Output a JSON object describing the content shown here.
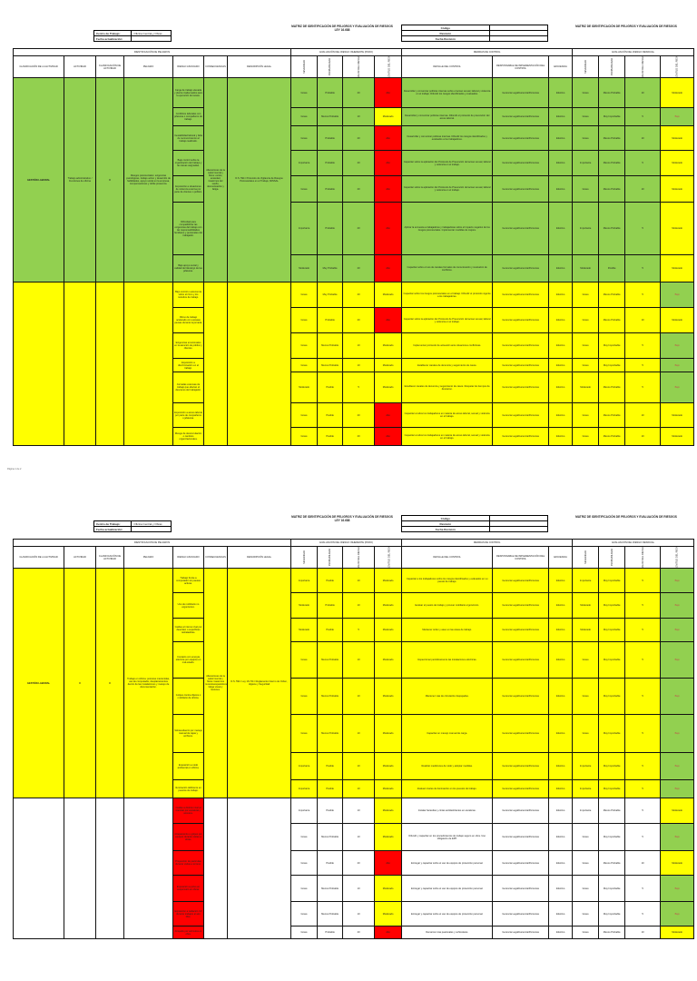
{
  "header": {
    "title": "MATRIZ DE IDENTIFICACIÓN DE PELIGROS Y EVALUACIÓN DE RIESGOS",
    "subtitle": "LEY 16.688",
    "right_title": "MATRIZ DE IDENTIFICACIÓN DE PELIGROS Y EVALUACIÓN DE RIESGOS",
    "work_center_label": "Centro de Trabajo:",
    "work_center_value": "Oficina Central y Obras",
    "update_label": "Fecha actualización:",
    "update_value": "",
    "code_label": "Código",
    "code_value": "",
    "revision_label": "Revisión",
    "revision_value": "",
    "revision_date_label": "Fecha Revisión",
    "revision_date_value": ""
  },
  "sections": [
    "IDENTIFICACIÓN DE PELIGROS",
    "EVALUACIÓN DEL RIESGO INHERENTE (PURO)",
    "MEDIDAS DE CONTROL",
    "EVALUACIÓN DEL RIESGO RESIDUAL"
  ],
  "columns": [
    "CLASIFICACIÓN DE LA ACTIVIDAD",
    "ACTIVIDAD",
    "CLASIFICACIÓN DE ACTIVIDAD",
    "PELIGRO",
    "RIESGO ASOCIADO",
    "CONSECUENCIAS",
    "DESCRIPCIÓN LEGAL",
    "SEVERIDAD",
    "PROBABILIDAD",
    "VALOR DEL RIESGO",
    "MAGNITUD DEL RIESGO",
    "DETALLE DEL CONTROL",
    "RESPONSABLE DE IMPLEMENTACIÓN DEL CONTROL",
    "EFICIENCIA",
    "SEVERIDAD",
    "PROBABILIDAD",
    "VALOR DEL RIESGO",
    "MAGNITUD DEL RIESGO"
  ],
  "colors": {
    "green": "#92d050",
    "yellow": "#ffff00",
    "red": "#ff0000",
    "orange": "#ffc000",
    "white": "#ffffff"
  },
  "footer": "Página 1 de 2",
  "pages": [
    {
      "groups": [
        {
          "color": "green",
          "classification": "GESTIÓN LABORAL",
          "activity": "Trabajo administrativo / Funciones de oficina",
          "activity_class": "R",
          "hazard": "Riesgos psicosociales: exigencias psicológicas, trabajo activo y desarrollo de habilidades, apoyo social en la empresa, compensaciones y doble presencia.",
          "consequences": "Alteraciones de la salud mental y física: estrés, ansiedad, trastornos del sueño, desmotivación y fatiga.",
          "legal": "D.S. 594 / Protocolo de Vigilancia de Riesgos Psicosociales en el Trabajo, MINSAL",
          "rows": [
            [
              "Carga de trabajo elevada y plazos inadecuados para la ejecución de tareas.",
              "Grave",
              "Probable",
              "20",
              "Alto",
              "Desarrollar y comunicar políticas internas sobre el acoso sexual, laboral y violencia en el trabajo. Difundir los riesgos identificados y evaluados.",
              "Gerencia Legal/Gerencia/Personas",
              "Efectivo",
              "Grave",
              "Menos Probable",
              "10",
              "Moderado"
            ],
            [
              "Conflictos laborales con jefaturas o compañeros de trabajo.",
              "Grave",
              "Menos Probable",
              "10",
              "Moderado",
              "Desarrollar y comunicar políticas internas. Difundir el protocolo de prevención del acoso laboral.",
              "Gerencia Legal/Gerencia/Personas",
              "Efectivo",
              "Grave",
              "Muy Improbable",
              "5",
              "Bajo"
            ],
            [
              "Inestabilidad laboral y falta de reconocimiento al trabajo realizado.",
              "Grave",
              "Probable",
              "20",
              "Alto",
              "Desarrollar y comunicar políticas internas. Difundir los riesgos identificados y evaluados a los trabajadores.",
              "Gerencia Legal/Gerencia/Personas",
              "Efectivo",
              "Grave",
              "Menos Probable",
              "10",
              "Moderado"
            ],
            [
              "Bajo control sobre la organización del trabajo y las tareas asignadas.",
              "Importante",
              "Probable",
              "20",
              "Alto",
              "Capacitar sobre la aplicación del Protocolo de Prevención del acoso sexual, laboral y violencia en el trabajo.",
              "Gerencia Legal/Gerencia/Personas",
              "Efectivo",
              "Importante",
              "Menos Probable",
              "5",
              "Moderado"
            ],
            [
              "Exposición a situaciones de violencia externa por parte de clientes o público.",
              "Grave",
              "Probable",
              "20",
              "Alto",
              "Capacitar sobre la aplicación del Protocolo de Prevención del acoso sexual, laboral y violencia en el trabajo.",
              "Gerencia Legal/Gerencia/Personas",
              "Efectivo",
              "Grave",
              "Menos Probable",
              "10",
              "Moderado"
            ],
            [
              "Dificultad para compatibilizar las exigencias del trabajo con las responsabilidades familiares y personales del trabajador.",
              "Importante",
              "Probable",
              "20",
              "Alto",
              "Aplicar la encuesta a trabajadores y trabajadoras sobre el impacto negativo de los riesgos psicosociales. Implementar medidas de mejora.",
              "Gerencia Legal/Gerencia/Personas",
              "Efectivo",
              "Importante",
              "Menos Probable",
              "5",
              "Moderado"
            ],
            [
              "Bajo apoyo social y calidad de liderazgo de las jefaturas.",
              "Moderado",
              "Muy Probable",
              "20",
              "Alto",
              "Capacitar sobre el uso de canales formales de comunicación y resolución de conflictos.",
              "Gerencia Legal/Gerencia/Personas",
              "Efectivo",
              "Moderado",
              "Posible",
              "5",
              "Moderado"
            ]
          ]
        },
        {
          "color": "yellow",
          "classification": "",
          "activity": "",
          "activity_class": "",
          "hazard": "",
          "consequences": "",
          "legal": "",
          "rows": [
            [
              "Bajo control o autonomía sobre el ritmo y los métodos de trabajo.",
              "Grave",
              "Muy Probable",
              "20",
              "Moderado",
              "Capacitar sobre los riesgos psicosociales en el trabajo. Difundir el protocolo vigente a los trabajadores.",
              "Gerencia Legal/Gerencia/Personas",
              "Efectivo",
              "Grave",
              "Menos Probable",
              "5",
              "Bajo"
            ],
            [
              "Ritmo de trabajo acelerado con escasas pausas durante la jornada.",
              "Grave",
              "Probable",
              "20",
              "Alto",
              "Capacitar sobre la aplicación del Protocolo de Prevención del acoso sexual, laboral y violencia en el trabajo.",
              "Gerencia Legal/Gerencia/Personas",
              "Efectivo",
              "Grave",
              "Menos Probable",
              "10",
              "Moderado"
            ],
            [
              "Exigencias emocionales en la atención de público y clientes.",
              "Grave",
              "Menos Probable",
              "10",
              "Moderado",
              "Implementar protocolo de actuación ante situaciones conflictivas.",
              "Gerencia Legal/Gerencia/Personas",
              "Efectivo",
              "Grave",
              "Muy Improbable",
              "5",
              "Bajo"
            ],
            [
              "Exposición a discriminación en el trabajo.",
              "Grave",
              "Menos Probable",
              "10",
              "Moderado",
              "Establecer canales de denuncia y seguimiento de casos.",
              "Gerencia Legal/Gerencia/Personas",
              "Efectivo",
              "Grave",
              "Muy Improbable",
              "5",
              "Bajo"
            ],
            [
              "Jornadas extensas de trabajo que afectan el descanso del trabajador.",
              "Moderado",
              "Posible",
              "5",
              "Moderado",
              "Establecer canales de denuncia y seguimiento de casos. Respetar los tiempos de descanso.",
              "Gerencia Legal/Gerencia/Personas",
              "Efectivo",
              "Moderado",
              "Menos Probable",
              "5",
              "Bajo"
            ],
            [
              "Exposición a acoso laboral por parte de compañeros o jefaturas.",
              "Grave",
              "Posible",
              "20",
              "Alto",
              "Capacitar a todos los trabajadores en materia de acoso laboral, sexual y violencia en el trabajo.",
              "Gerencia Legal/Gerencia/Personas",
              "Efectivo",
              "Grave",
              "Menos Probable",
              "10",
              "Moderado"
            ],
            [
              "Riesgo de desvinculación o cambios organizacionales.",
              "Grave",
              "Posible",
              "20",
              "Alto",
              "Capacitar a todos los trabajadores en materia de acoso laboral, sexual y violencia en el trabajo.",
              "Gerencia Legal/Gerencia/Personas",
              "Efectivo",
              "Grave",
              "Menos Probable",
              "10",
              "Moderado"
            ]
          ]
        }
      ]
    },
    {
      "groups": [
        {
          "color": "yellow",
          "classification": "GESTIÓN LABORAL",
          "activity": "R",
          "activity_class": "R",
          "hazard": "Trabajo en oficina: posturas mantenidas, uso de computador, desplazamientos dentro de las instalaciones y manejo de documentación.",
          "consequences": "Alteraciones de la salud mental y física: trastornos musculoesqueléticos, fatiga visual y lesiones.",
          "legal": "D.S. 594 / Ley 16.744 / Reglamento Interno de Orden, Higiene y Seguridad",
          "rows": [
            [
              "Trabajo frente a computador sin pausas activas.",
              "Importante",
              "Posible",
              "10",
              "Moderado",
              "Capacitar a los trabajadores sobre los riesgos identificados y evaluados en su puesto de trabajo.",
              "Gerencia Legal/Gerencia/Personas",
              "Efectivo",
              "Importante",
              "Muy Improbable",
              "5",
              "Bajo"
            ],
            [
              "Uso de mobiliario no ergonómico.",
              "Moderado",
              "Probable",
              "10",
              "Moderado",
              "Evaluar el puesto de trabajo y proveer mobiliario ergonómico.",
              "Gerencia Legal/Gerencia/Personas",
              "Efectivo",
              "Moderado",
              "Muy Improbable",
              "5",
              "Bajo"
            ],
            [
              "Caídas al mismo nivel por desorden o superficies resbaladizas.",
              "Moderado",
              "Posible",
              "5",
              "Moderado",
              "Mantener orden y aseo en las áreas de trabajo.",
              "Gerencia Legal/Gerencia/Personas",
              "Efectivo",
              "Moderado",
              "Muy Improbable",
              "5",
              "Bajo"
            ],
            [
              "Contacto con energía eléctrica por equipos en mal estado.",
              "Grave",
              "Menos Probable",
              "10",
              "Moderado",
              "Inspeccionar periódicamente las instalaciones eléctricas.",
              "Gerencia Legal/Gerencia/Personas",
              "Efectivo",
              "Grave",
              "Muy Improbable",
              "5",
              "Bajo"
            ],
            [
              "Golpes contra objetos o mobiliario de oficina.",
              "Grave",
              "Menos Probable",
              "10",
              "Moderado",
              "Mantener vías de circulación despejadas.",
              "Gerencia Legal/Gerencia/Personas",
              "Efectivo",
              "Grave",
              "Muy Improbable",
              "5",
              "Bajo"
            ],
            [
              "Sobreesfuerzo por manejo manual de cajas y archivos.",
              "Grave",
              "Menos Probable",
              "10",
              "Moderado",
              "Capacitar en manejo manual de carga.",
              "Gerencia Legal/Gerencia/Personas",
              "Efectivo",
              "Grave",
              "Muy Improbable",
              "5",
              "Bajo"
            ],
            [
              "Exposición a ruido ambiental en oficina.",
              "Importante",
              "Posible",
              "10",
              "Moderado",
              "Realizar mediciones de ruido y adoptar medidas.",
              "Gerencia Legal/Gerencia/Personas",
              "Efectivo",
              "Importante",
              "Muy Improbable",
              "5",
              "Bajo"
            ],
            [
              "Iluminación deficiente en puestos de trabajo.",
              "Importante",
              "Posible",
              "10",
              "Moderado",
              "Evaluar niveles de iluminación en los puestos de trabajo.",
              "Gerencia Legal/Gerencia/Personas",
              "Efectivo",
              "Importante",
              "Muy Improbable",
              "5",
              "Bajo"
            ]
          ]
        },
        {
          "color": "white",
          "classification": "",
          "activity": "",
          "activity_class": "",
          "hazard": "",
          "consequences": "",
          "legal": "",
          "rows": [
            [
              "Caídas a distinto nivel al transitar por escaleras y accesos.",
              "Importante",
              "Posible",
              "10",
              "Moderado",
              "Instalar barandas y cintas antideslizantes en escaleras.",
              "Gerencia Legal/Gerencia/Personas",
              "Efectivo",
              "Importante",
              "Menos Probable",
              "5",
              "Moderado"
            ],
            [
              "Atrapamiento o golpes por equipos durante visitas a obras.",
              "Grave",
              "Menos Probable",
              "10",
              "Moderado",
              "Difundir y capacitar en los procedimientos de trabajo seguro en obra. Uso obligatorio de EPP.",
              "Gerencia Legal/Gerencia/Personas",
              "Efectivo",
              "Grave",
              "Muy Improbable",
              "5",
              "Bajo"
            ],
            [
              "Proyección de partículas durante visitas a terreno.",
              "Grave",
              "Posible",
              "20",
              "Alto",
              "Entregar y capacitar sobre el uso de equipos de protección personal.",
              "Gerencia Legal/Gerencia/Personas",
              "Efectivo",
              "Grave",
              "Menos Probable",
              "10",
              "Moderado"
            ],
            [
              "Exposición a polvo en suspensión en obras.",
              "Grave",
              "Menos Probable",
              "10",
              "Moderado",
              "Entregar y capacitar sobre el uso de equipos de protección personal.",
              "Gerencia Legal/Gerencia/Personas",
              "Efectivo",
              "Grave",
              "Muy Improbable",
              "5",
              "Bajo"
            ],
            [
              "Exposición a radiación UV durante trabajos al aire libre.",
              "Grave",
              "Menos Probable",
              "10",
              "Moderado",
              "Entregar y capacitar sobre el uso de equipos de protección personal.",
              "Gerencia Legal/Gerencia/Personas",
              "Efectivo",
              "Grave",
              "Muy Improbable",
              "5",
              "Bajo"
            ],
            [
              "Atropello por vehículos en obra.",
              "Grave",
              "Probable",
              "20",
              "Alto",
              "Demarcar vías peatonales y vehiculares.",
              "Gerencia Legal/Gerencia/Personas",
              "Efectivo",
              "Grave",
              "Menos Probable",
              "10",
              "Moderado"
            ]
          ]
        }
      ]
    }
  ]
}
